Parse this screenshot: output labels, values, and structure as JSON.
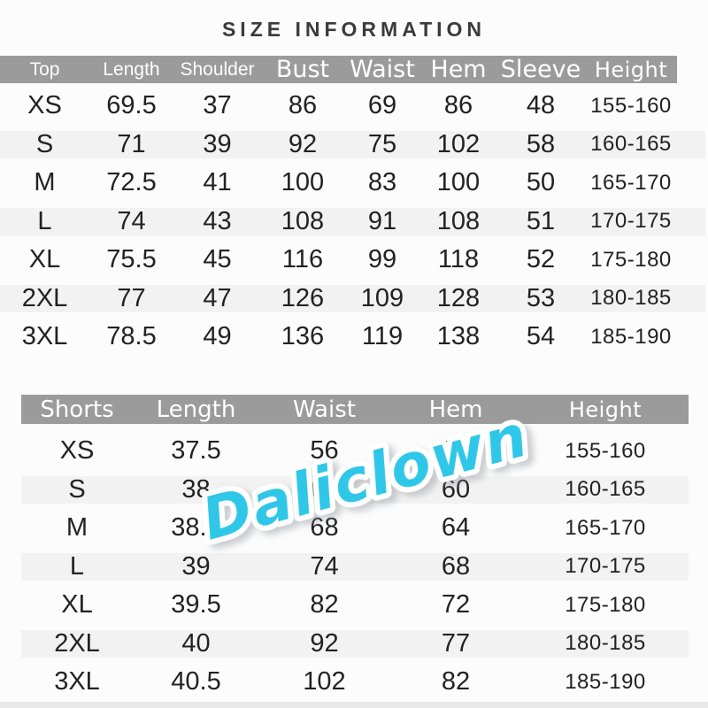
{
  "title": "SIZE INFORMATION",
  "watermark": {
    "text": "Daliclown",
    "color": "#2fc7e8"
  },
  "colors": {
    "page_bg": "#fcfcfc",
    "header_bg": "#9b9b9b",
    "header_text": "#ffffff",
    "body_text": "#222222",
    "stripe": "#f3f2f2",
    "title_text": "#3b3b3b",
    "watermark": "#2fc7e8",
    "bottom_strip": "#e8e8e8"
  },
  "chart_data": [
    {
      "type": "table",
      "name": "top-sizes",
      "columns": [
        "Top",
        "Length",
        "Shoulder",
        "Bust",
        "Waist",
        "Hem",
        "Sleeve",
        "Height"
      ],
      "rows": [
        [
          "XS",
          "69.5",
          "37",
          "86",
          "69",
          "86",
          "48",
          "155-160"
        ],
        [
          "S",
          "71",
          "39",
          "92",
          "75",
          "102",
          "58",
          "160-165"
        ],
        [
          "M",
          "72.5",
          "41",
          "100",
          "83",
          "100",
          "50",
          "165-170"
        ],
        [
          "L",
          "74",
          "43",
          "108",
          "91",
          "108",
          "51",
          "170-175"
        ],
        [
          "XL",
          "75.5",
          "45",
          "116",
          "99",
          "118",
          "52",
          "175-180"
        ],
        [
          "2XL",
          "77",
          "47",
          "126",
          "109",
          "128",
          "53",
          "180-185"
        ],
        [
          "3XL",
          "78.5",
          "49",
          "136",
          "119",
          "138",
          "54",
          "185-190"
        ]
      ]
    },
    {
      "type": "table",
      "name": "shorts-sizes",
      "columns": [
        "Shorts",
        "Length",
        "Waist",
        "Hem",
        "Height"
      ],
      "rows": [
        [
          "XS",
          "37.5",
          "56",
          "57",
          "155-160"
        ],
        [
          "S",
          "38",
          "62",
          "60",
          "160-165"
        ],
        [
          "M",
          "38.5",
          "68",
          "64",
          "165-170"
        ],
        [
          "L",
          "39",
          "74",
          "68",
          "170-175"
        ],
        [
          "XL",
          "39.5",
          "82",
          "72",
          "175-180"
        ],
        [
          "2XL",
          "40",
          "92",
          "77",
          "180-185"
        ],
        [
          "3XL",
          "40.5",
          "102",
          "82",
          "185-190"
        ]
      ]
    }
  ]
}
